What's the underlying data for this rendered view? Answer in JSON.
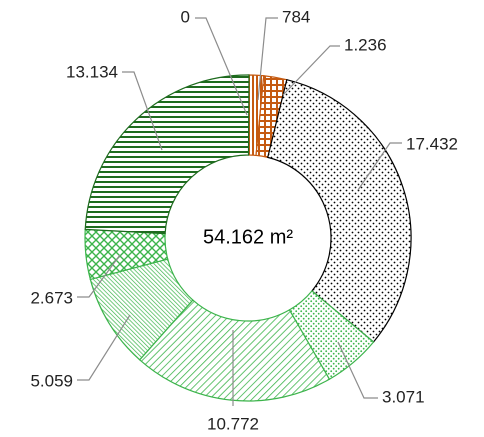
{
  "chart_data": {
    "type": "pie",
    "style": "donut",
    "center_label": "54.162 m²",
    "legend": "none",
    "slices": [
      {
        "label": "0",
        "value": 0,
        "color": "#e8b08a",
        "pattern": "light-crosshatch"
      },
      {
        "label": "784",
        "value": 784,
        "color": "#c55a11",
        "pattern": "vertical-lines"
      },
      {
        "label": "1.236",
        "value": 1236,
        "color": "#c55a11",
        "pattern": "grid"
      },
      {
        "label": "17.432",
        "value": 17432,
        "color": "#000000",
        "pattern": "dots"
      },
      {
        "label": "3.071",
        "value": 3071,
        "color": "#3cb44b",
        "pattern": "dots"
      },
      {
        "label": "10.772",
        "value": 10772,
        "color": "#3cb44b",
        "pattern": "diagonal-lines"
      },
      {
        "label": "5.059",
        "value": 5059,
        "color": "#3cb44b",
        "pattern": "dense-diagonal-lines"
      },
      {
        "label": "2.673",
        "value": 2673,
        "color": "#3cb44b",
        "pattern": "diagonal-crosshatch"
      },
      {
        "label": "13.134",
        "value": 13134,
        "color": "#1e6b1e",
        "pattern": "horizontal-lines"
      }
    ]
  }
}
